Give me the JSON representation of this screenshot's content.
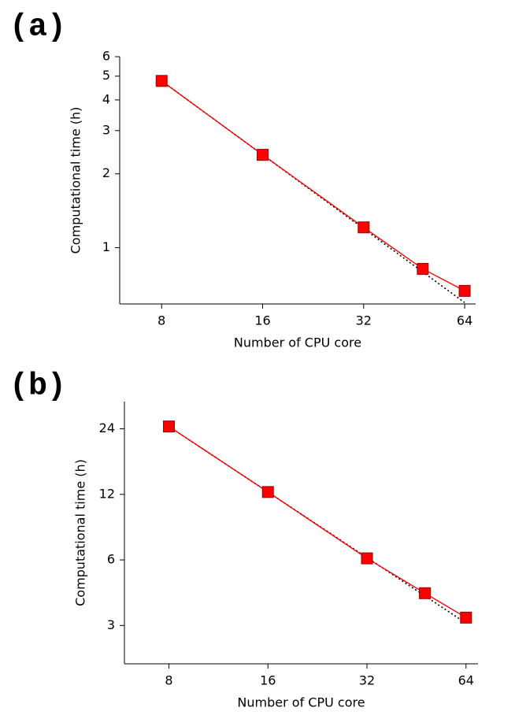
{
  "chart_data": [
    {
      "type": "line",
      "title": "(a)",
      "xlabel": "Number of CPU core",
      "ylabel": "Computational time (h)",
      "log_x": true,
      "log_y": true,
      "x": [
        8,
        16,
        32,
        48,
        64
      ],
      "series": [
        {
          "color": "#ff0000",
          "linestyle": "solid",
          "marker": "square",
          "values": [
            4.78,
            2.39,
            1.21,
            0.82,
            0.667
          ]
        },
        {
          "color": "#000000",
          "linestyle": "dotted",
          "x": [
            8,
            16,
            32,
            64
          ],
          "values": [
            4.78,
            2.39,
            1.195,
            0.5975
          ]
        }
      ],
      "xlim": [
        6,
        69
      ],
      "xticks": [
        8,
        16,
        32,
        64
      ],
      "ylim": [
        0.59,
        6
      ],
      "yticks": [
        1,
        2,
        3,
        4,
        5,
        6
      ]
    },
    {
      "type": "line",
      "title": "(b)",
      "xlabel": "Number of CPU core",
      "ylabel": "Computational time (h)",
      "log_x": true,
      "log_y": true,
      "x": [
        8,
        16,
        32,
        48,
        64
      ],
      "series": [
        {
          "color": "#ff0000",
          "linestyle": "solid",
          "marker": "square",
          "values": [
            24.6,
            12.3,
            6.1,
            4.22,
            3.26
          ]
        },
        {
          "color": "#000000",
          "linestyle": "dotted",
          "x": [
            8,
            16,
            32,
            64
          ],
          "values": [
            24.6,
            12.3,
            6.15,
            3.075
          ]
        }
      ],
      "xlim": [
        5.86,
        69.6
      ],
      "xticks": [
        8,
        16,
        32,
        64
      ],
      "ylim": [
        2,
        32
      ],
      "yticks": [
        3,
        6,
        12,
        24
      ]
    }
  ]
}
